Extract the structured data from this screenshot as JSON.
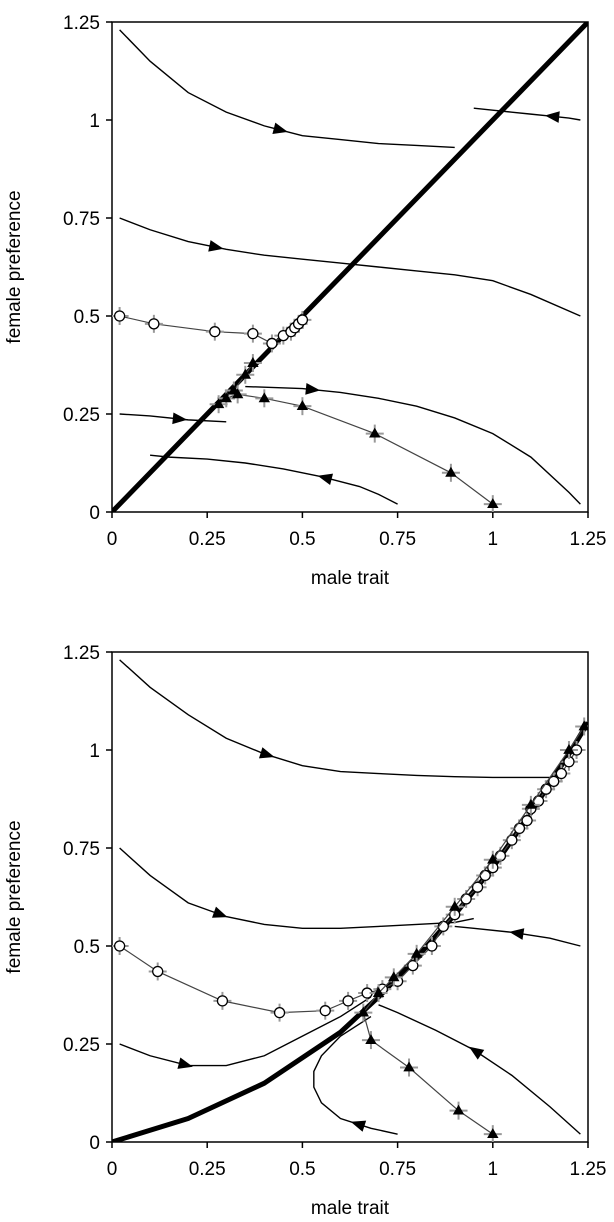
{
  "chart_data": [
    {
      "type": "line",
      "panel": "top",
      "xlabel": "male trait",
      "ylabel": "female preference",
      "xlim": [
        0,
        1.25
      ],
      "ylim": [
        0,
        1.25
      ],
      "xticks": [
        "0",
        "0.25",
        "0.5",
        "0.75",
        "1",
        "1.25"
      ],
      "yticks": [
        "0",
        "0.25",
        "0.5",
        "0.75",
        "1",
        "1.25"
      ],
      "grid": false,
      "equilibrium_line": [
        [
          0,
          0
        ],
        [
          1.25,
          1.25
        ]
      ],
      "trajectories": [
        {
          "points": [
            [
              0.02,
              1.23
            ],
            [
              0.1,
              1.15
            ],
            [
              0.2,
              1.07
            ],
            [
              0.3,
              1.02
            ],
            [
              0.4,
              0.985
            ],
            [
              0.5,
              0.96
            ],
            [
              0.6,
              0.95
            ],
            [
              0.7,
              0.94
            ],
            [
              0.8,
              0.935
            ],
            [
              0.9,
              0.93
            ]
          ],
          "arrow_at": 0.52,
          "arrow_dir": 1
        },
        {
          "points": [
            [
              1.23,
              1.0
            ],
            [
              1.2,
              1.005
            ],
            [
              1.15,
              1.01
            ],
            [
              1.1,
              1.015
            ],
            [
              1.05,
              1.02
            ],
            [
              1.0,
              1.025
            ],
            [
              0.95,
              1.03
            ]
          ],
          "arrow_at": 0.25,
          "arrow_dir": 1
        },
        {
          "points": [
            [
              0.02,
              0.75
            ],
            [
              0.1,
              0.72
            ],
            [
              0.2,
              0.69
            ],
            [
              0.3,
              0.67
            ],
            [
              0.4,
              0.655
            ],
            [
              0.5,
              0.645
            ],
            [
              0.6,
              0.635
            ],
            [
              0.7,
              0.625
            ],
            [
              0.8,
              0.615
            ],
            [
              0.9,
              0.605
            ],
            [
              1.0,
              0.59
            ],
            [
              1.1,
              0.555
            ],
            [
              1.23,
              0.5
            ]
          ],
          "arrow_at": 0.21,
          "arrow_dir": 1
        },
        {
          "points": [
            [
              0.02,
              0.25
            ],
            [
              0.1,
              0.245
            ],
            [
              0.2,
              0.235
            ],
            [
              0.3,
              0.23
            ]
          ],
          "arrow_at": 0.55,
          "arrow_dir": 1
        },
        {
          "points": [
            [
              0.35,
              0.32
            ],
            [
              0.5,
              0.315
            ],
            [
              0.6,
              0.305
            ],
            [
              0.7,
              0.29
            ],
            [
              0.8,
              0.27
            ],
            [
              0.9,
              0.24
            ],
            [
              1.0,
              0.2
            ],
            [
              1.1,
              0.14
            ],
            [
              1.2,
              0.05
            ],
            [
              1.23,
              0.02
            ]
          ],
          "arrow_at": 0.18,
          "arrow_dir": 1
        },
        {
          "points": [
            [
              0.75,
              0.02
            ],
            [
              0.7,
              0.045
            ],
            [
              0.65,
              0.065
            ],
            [
              0.55,
              0.09
            ],
            [
              0.45,
              0.11
            ],
            [
              0.35,
              0.125
            ],
            [
              0.25,
              0.135
            ],
            [
              0.15,
              0.14
            ],
            [
              0.1,
              0.145
            ]
          ],
          "arrow_at": 0.3,
          "arrow_dir": 1
        }
      ],
      "series": [
        {
          "marker": "circle",
          "points": [
            [
              0.02,
              0.5
            ],
            [
              0.11,
              0.48
            ],
            [
              0.27,
              0.46
            ],
            [
              0.37,
              0.455
            ],
            [
              0.42,
              0.43
            ],
            [
              0.45,
              0.45
            ],
            [
              0.47,
              0.46
            ],
            [
              0.48,
              0.47
            ],
            [
              0.49,
              0.48
            ],
            [
              0.5,
              0.49
            ]
          ]
        },
        {
          "marker": "triangle",
          "points": [
            [
              1.0,
              0.02
            ],
            [
              0.89,
              0.1
            ],
            [
              0.69,
              0.2
            ],
            [
              0.5,
              0.27
            ],
            [
              0.4,
              0.29
            ],
            [
              0.33,
              0.3
            ],
            [
              0.3,
              0.29
            ],
            [
              0.28,
              0.275
            ],
            [
              0.32,
              0.31
            ],
            [
              0.35,
              0.35
            ],
            [
              0.37,
              0.38
            ]
          ]
        }
      ]
    },
    {
      "type": "line",
      "panel": "bottom",
      "xlabel": "male trait",
      "ylabel": "female preference",
      "xlim": [
        0,
        1.25
      ],
      "ylim": [
        0,
        1.25
      ],
      "xticks": [
        "0",
        "0.25",
        "0.5",
        "0.75",
        "1",
        "1.25"
      ],
      "yticks": [
        "0",
        "0.25",
        "0.5",
        "0.75",
        "1",
        "1.25"
      ],
      "grid": false,
      "equilibrium_line": [
        [
          0,
          0
        ],
        [
          0.2,
          0.06
        ],
        [
          0.4,
          0.15
        ],
        [
          0.6,
          0.28
        ],
        [
          0.7,
          0.37
        ],
        [
          0.8,
          0.47
        ],
        [
          0.9,
          0.58
        ],
        [
          1.0,
          0.7
        ],
        [
          1.1,
          0.84
        ],
        [
          1.2,
          0.99
        ],
        [
          1.25,
          1.07
        ]
      ],
      "trajectories": [
        {
          "points": [
            [
              0.02,
              1.23
            ],
            [
              0.1,
              1.16
            ],
            [
              0.2,
              1.09
            ],
            [
              0.3,
              1.03
            ],
            [
              0.4,
              0.99
            ],
            [
              0.5,
              0.96
            ],
            [
              0.6,
              0.945
            ],
            [
              0.7,
              0.94
            ],
            [
              0.8,
              0.935
            ],
            [
              0.9,
              0.932
            ],
            [
              1.0,
              0.93
            ],
            [
              1.1,
              0.93
            ],
            [
              1.15,
              0.93
            ]
          ],
          "arrow_at": 0.38,
          "arrow_dir": 1
        },
        {
          "points": [
            [
              0.02,
              0.75
            ],
            [
              0.1,
              0.68
            ],
            [
              0.2,
              0.61
            ],
            [
              0.3,
              0.575
            ],
            [
              0.4,
              0.555
            ],
            [
              0.5,
              0.545
            ],
            [
              0.6,
              0.545
            ],
            [
              0.7,
              0.55
            ],
            [
              0.8,
              0.555
            ],
            [
              0.9,
              0.56
            ],
            [
              0.95,
              0.57
            ]
          ],
          "arrow_at": 0.32,
          "arrow_dir": 1
        },
        {
          "points": [
            [
              1.23,
              0.5
            ],
            [
              1.15,
              0.52
            ],
            [
              1.05,
              0.535
            ],
            [
              0.95,
              0.545
            ],
            [
              0.9,
              0.55
            ]
          ],
          "arrow_at": 0.5,
          "arrow_dir": 1
        },
        {
          "points": [
            [
              0.02,
              0.25
            ],
            [
              0.1,
              0.22
            ],
            [
              0.2,
              0.195
            ],
            [
              0.3,
              0.195
            ],
            [
              0.4,
              0.22
            ],
            [
              0.5,
              0.27
            ],
            [
              0.6,
              0.32
            ],
            [
              0.68,
              0.37
            ]
          ],
          "arrow_at": 0.25,
          "arrow_dir": 1
        },
        {
          "points": [
            [
              0.75,
              0.02
            ],
            [
              0.68,
              0.035
            ],
            [
              0.6,
              0.06
            ],
            [
              0.55,
              0.1
            ],
            [
              0.53,
              0.14
            ],
            [
              0.53,
              0.18
            ],
            [
              0.55,
              0.22
            ],
            [
              0.6,
              0.27
            ],
            [
              0.68,
              0.32
            ]
          ],
          "arrow_at": 0.2,
          "arrow_dir": 1
        },
        {
          "points": [
            [
              1.23,
              0.02
            ],
            [
              1.15,
              0.09
            ],
            [
              1.05,
              0.17
            ],
            [
              0.95,
              0.235
            ],
            [
              0.85,
              0.285
            ],
            [
              0.75,
              0.33
            ],
            [
              0.7,
              0.35
            ]
          ],
          "arrow_at": 0.55,
          "arrow_dir": 1
        }
      ],
      "series": [
        {
          "marker": "circle",
          "points": [
            [
              0.02,
              0.5
            ],
            [
              0.12,
              0.435
            ],
            [
              0.29,
              0.36
            ],
            [
              0.44,
              0.33
            ],
            [
              0.56,
              0.335
            ],
            [
              0.62,
              0.36
            ],
            [
              0.67,
              0.38
            ],
            [
              0.71,
              0.39
            ],
            [
              0.75,
              0.41
            ],
            [
              0.79,
              0.45
            ],
            [
              0.84,
              0.5
            ],
            [
              0.87,
              0.55
            ],
            [
              0.9,
              0.58
            ],
            [
              0.93,
              0.62
            ],
            [
              0.96,
              0.65
            ],
            [
              0.98,
              0.68
            ],
            [
              1.0,
              0.7
            ],
            [
              1.02,
              0.73
            ],
            [
              1.05,
              0.77
            ],
            [
              1.07,
              0.8
            ],
            [
              1.09,
              0.82
            ],
            [
              1.1,
              0.85
            ],
            [
              1.12,
              0.87
            ],
            [
              1.14,
              0.9
            ],
            [
              1.16,
              0.92
            ],
            [
              1.18,
              0.94
            ],
            [
              1.2,
              0.97
            ],
            [
              1.22,
              1.0
            ]
          ]
        },
        {
          "marker": "triangle",
          "points": [
            [
              1.0,
              0.02
            ],
            [
              0.91,
              0.08
            ],
            [
              0.78,
              0.19
            ],
            [
              0.68,
              0.26
            ],
            [
              0.66,
              0.33
            ],
            [
              0.7,
              0.38
            ],
            [
              0.74,
              0.42
            ],
            [
              0.8,
              0.48
            ],
            [
              0.9,
              0.6
            ],
            [
              1.0,
              0.72
            ],
            [
              1.1,
              0.86
            ],
            [
              1.2,
              1.0
            ],
            [
              1.24,
              1.06
            ]
          ]
        }
      ]
    }
  ]
}
